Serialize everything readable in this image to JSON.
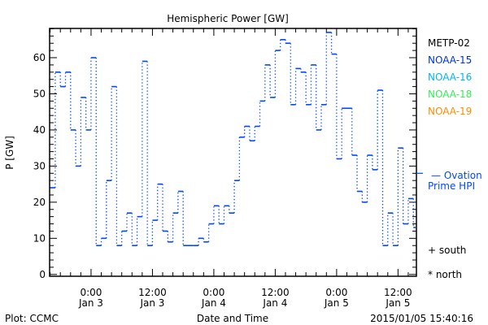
{
  "chart_data": {
    "type": "line",
    "title": "Hemispheric Power [GW]",
    "xlabel": "Date and Time",
    "ylabel": "P [GW]",
    "x_units": "hours since 2015-01-03 00:00 UT",
    "xlim": [
      -8.1,
      63.6
    ],
    "ylim": [
      -0.5,
      68.1
    ],
    "yticks": [
      0,
      10,
      20,
      30,
      40,
      50,
      60
    ],
    "xticks": [
      {
        "x": 0,
        "line1": "0:00",
        "line2": "Jan 3"
      },
      {
        "x": 12,
        "line1": "12:00",
        "line2": "Jan 3"
      },
      {
        "x": 24,
        "line1": "0:00",
        "line2": "Jan 4"
      },
      {
        "x": 36,
        "line1": "12:00",
        "line2": "Jan 4"
      },
      {
        "x": 48,
        "line1": "0:00",
        "line2": "Jan 5"
      },
      {
        "x": 60,
        "line1": "12:00",
        "line2": "Jan 5"
      }
    ],
    "series": [
      {
        "name": "NOAA-15",
        "style": "step",
        "color": "#0048ff",
        "x_start": -8,
        "step_hours": 1,
        "values": [
          24,
          56,
          52,
          56,
          40,
          30,
          49,
          40,
          60,
          8,
          10,
          26,
          52,
          8,
          12,
          17,
          8,
          16,
          59,
          8,
          15,
          25,
          12,
          9,
          17,
          23,
          8,
          8,
          8,
          10,
          9,
          14,
          19,
          14,
          19,
          17,
          26,
          38,
          41,
          37,
          41,
          48,
          58,
          49,
          62,
          65,
          64,
          47,
          57,
          56,
          47,
          58,
          40,
          47,
          67,
          61,
          32,
          46,
          46,
          33,
          23,
          20,
          33,
          29,
          51,
          8,
          17,
          8,
          35,
          14,
          21,
          13
        ]
      }
    ],
    "ovation_prime_hpi": {
      "label_line1": "— Ovation",
      "label_line2": "Prime HPI",
      "value": 28,
      "color": "#0048ff"
    },
    "legend": [
      {
        "name": "METP-02",
        "color": "#000000"
      },
      {
        "name": "NOAA-15",
        "color": "#0033dd"
      },
      {
        "name": "NOAA-16",
        "color": "#00b4ff"
      },
      {
        "name": "NOAA-18",
        "color": "#33ee55"
      },
      {
        "name": "NOAA-19",
        "color": "#ff8c00"
      }
    ],
    "legend_position": "right",
    "markers": {
      "south": "+ south",
      "north": "* north"
    }
  },
  "footer": {
    "left": "Plot: CCMC",
    "right": "2015/01/05 15:40:16"
  }
}
